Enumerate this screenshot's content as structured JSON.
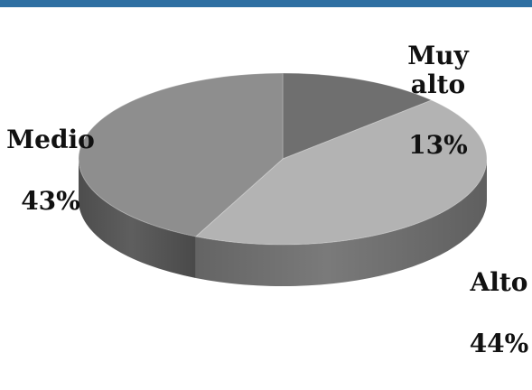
{
  "colors": {
    "top_bar": "#2f6fa2"
  },
  "chart_data": {
    "type": "pie",
    "three_d": true,
    "title": "",
    "categories": [
      "Muy alto",
      "Alto",
      "Medio"
    ],
    "values": [
      13,
      44,
      43
    ],
    "value_labels": [
      "13%",
      "44%",
      "43%"
    ],
    "colors": [
      "#6f6f6f",
      "#b3b3b3",
      "#8e8e8e"
    ],
    "side_colors": [
      "#4a4a4a",
      "#7a7a7a",
      "#5e5e5e"
    ],
    "legend": "none",
    "grid": false
  }
}
